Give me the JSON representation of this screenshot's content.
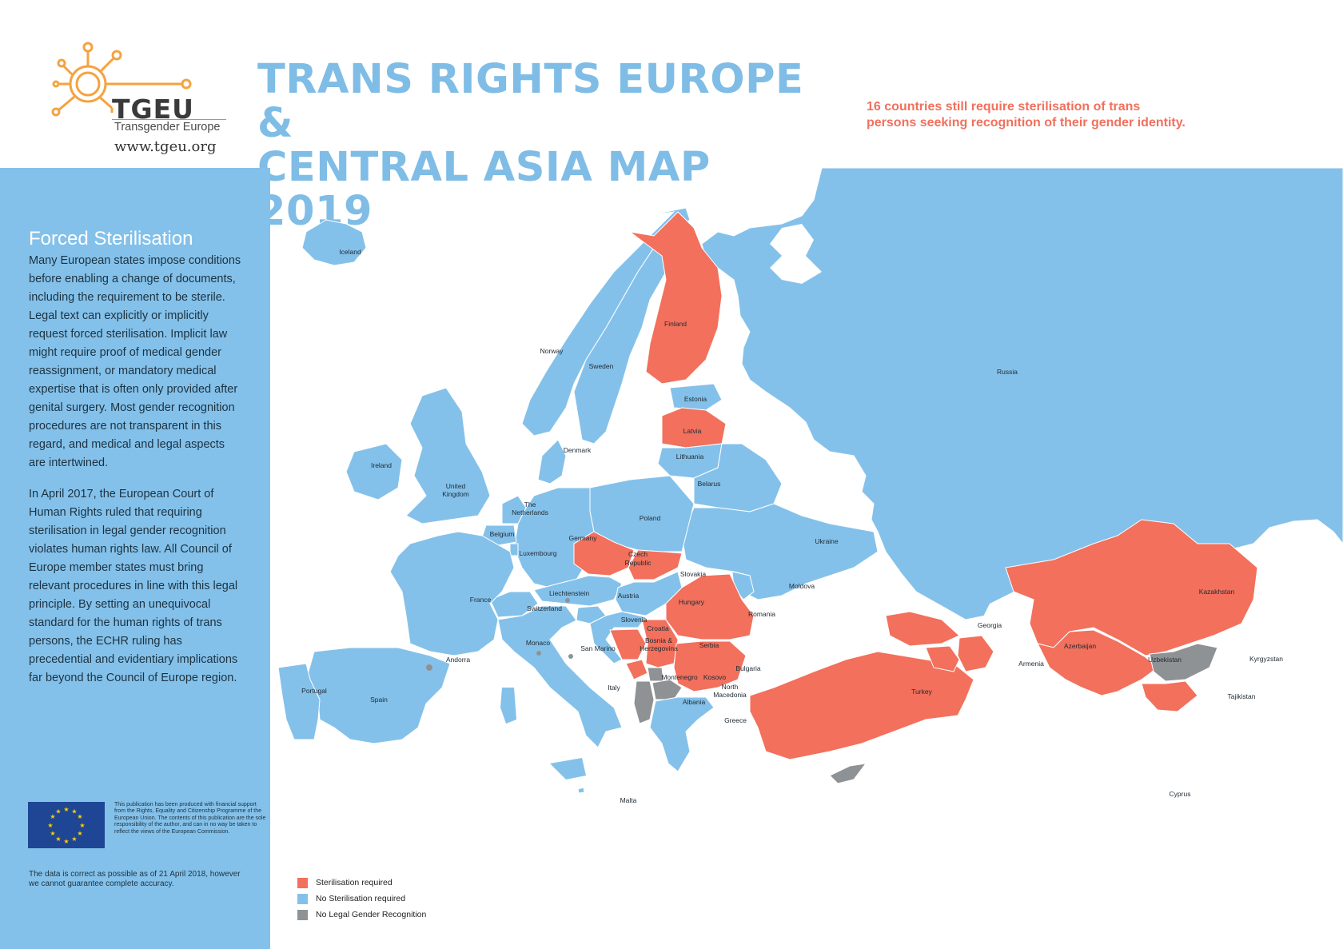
{
  "header": {
    "logo_word": "TGEU",
    "logo_subtitle": "Transgender Europe",
    "logo_url": "www.tgeu.org",
    "title_line1": "TRANS RIGHTS EUROPE &",
    "title_line2": "CENTRAL ASIA MAP 2019",
    "note_line1": "16 countries still require sterilisation of trans",
    "note_line2": "persons seeking recognition of their gender identity."
  },
  "sidebar": {
    "heading": "Forced Sterilisation",
    "paragraph1": "Many European states impose conditions before enabling a change of documents, including the requirement to be sterile. Legal text can explicitly or implicitly request forced sterilisation. Implicit law might require proof of medical gender reassignment, or mandatory medical expertise that is often only provided after genital surgery. Most gender recognition procedures are not transparent in this regard, and medical and legal aspects are intertwined.",
    "paragraph2": "In April 2017, the European Court of Human Rights ruled that requiring sterilisation in legal gender recognition violates human rights law. All Council of Europe member states must bring relevant procedures in line with this legal principle. By setting an unequivocal standard for the human rights of trans persons, the ECHR ruling has precedential and evidentiary implications far beyond the Council of Europe region.",
    "eu_text": "This publication has been produced with financial support from the Rights, Equality and Citizenship Programme of the European Union. The contents of this publication are the sole responsibility of the author, and can in no way be taken to reflect the views of the European Commission.",
    "disclaimer": "The data is correct as possible as of 21 April 2018, however we cannot guarantee complete accuracy."
  },
  "colors": {
    "sterilisation": "#f2705c",
    "no_sterilisation": "#84c1ea",
    "no_recognition": "#8f9294",
    "title": "#7fbde6",
    "border": "#ffffff"
  },
  "legend": [
    {
      "label": "Sterilisation required",
      "status": "sterilisation"
    },
    {
      "label": "No Sterilisation required",
      "status": "no_sterilisation"
    },
    {
      "label": "No Legal Gender Recognition",
      "status": "no_recognition"
    }
  ],
  "countries": {
    "iceland": {
      "name": "Iceland",
      "status": "no_sterilisation"
    },
    "ireland": {
      "name": "Ireland",
      "status": "no_sterilisation"
    },
    "united_kingdom": {
      "name_line1": "United",
      "name_line2": "Kingdom",
      "status": "no_sterilisation"
    },
    "norway": {
      "name": "Norway",
      "status": "no_sterilisation"
    },
    "sweden": {
      "name": "Sweden",
      "status": "no_sterilisation"
    },
    "finland": {
      "name": "Finland",
      "status": "sterilisation"
    },
    "russia": {
      "name": "Russia",
      "status": "no_sterilisation"
    },
    "estonia": {
      "name": "Estonia",
      "status": "no_sterilisation"
    },
    "latvia": {
      "name": "Latvia",
      "status": "sterilisation"
    },
    "lithuania": {
      "name": "Lithuania",
      "status": "no_sterilisation"
    },
    "denmark": {
      "name": "Denmark",
      "status": "no_sterilisation"
    },
    "belarus": {
      "name": "Belarus",
      "status": "no_sterilisation"
    },
    "netherlands": {
      "name_line1": "The",
      "name_line2": "Netherlands",
      "status": "no_sterilisation"
    },
    "belgium": {
      "name": "Belgium",
      "status": "no_sterilisation"
    },
    "luxembourg": {
      "name": "Luxembourg",
      "status": "no_sterilisation"
    },
    "germany": {
      "name": "Germany",
      "status": "no_sterilisation"
    },
    "poland": {
      "name": "Poland",
      "status": "no_sterilisation"
    },
    "ukraine": {
      "name": "Ukraine",
      "status": "no_sterilisation"
    },
    "czech_republic": {
      "name_line1": "Czech",
      "name_line2": "Republic",
      "status": "sterilisation"
    },
    "slovakia": {
      "name": "Slovakia",
      "status": "sterilisation"
    },
    "france": {
      "name": "France",
      "status": "no_sterilisation"
    },
    "liechtenstein": {
      "name": "Liechtenstein",
      "status": "no_sterilisation"
    },
    "switzerland": {
      "name": "Switzerland",
      "status": "no_sterilisation"
    },
    "austria": {
      "name": "Austria",
      "status": "no_sterilisation"
    },
    "hungary": {
      "name": "Hungary",
      "status": "no_sterilisation"
    },
    "moldova": {
      "name": "Moldova",
      "status": "no_sterilisation"
    },
    "romania": {
      "name": "Romania",
      "status": "sterilisation"
    },
    "slovenia": {
      "name": "Slovenia",
      "status": "no_sterilisation"
    },
    "croatia": {
      "name": "Croatia",
      "status": "no_sterilisation"
    },
    "bosnia": {
      "name_line1": "Bosnia &",
      "name_line2": "Herzegovina",
      "status": "sterilisation"
    },
    "serbia": {
      "name": "Serbia",
      "status": "sterilisation"
    },
    "montenegro": {
      "name": "Montenegro",
      "status": "sterilisation"
    },
    "kosovo": {
      "name": "Kosovo",
      "status": "no_recognition"
    },
    "north_macedonia": {
      "name_line1": "North",
      "name_line2": "Macedonia",
      "status": "no_recognition"
    },
    "albania": {
      "name": "Albania",
      "status": "no_recognition"
    },
    "bulgaria": {
      "name": "Bulgaria",
      "status": "sterilisation"
    },
    "greece": {
      "name": "Greece",
      "status": "no_sterilisation"
    },
    "monaco": {
      "name": "Monaco",
      "status": "no_sterilisation"
    },
    "san_marino": {
      "name": "San Marino",
      "status": "no_sterilisation"
    },
    "andorra": {
      "name": "Andorra",
      "status": "no_recognition"
    },
    "italy": {
      "name": "Italy",
      "status": "no_sterilisation"
    },
    "portugal": {
      "name": "Portugal",
      "status": "no_sterilisation"
    },
    "spain": {
      "name": "Spain",
      "status": "no_sterilisation"
    },
    "malta": {
      "name": "Malta",
      "status": "no_sterilisation"
    },
    "turkey": {
      "name": "Turkey",
      "status": "sterilisation"
    },
    "cyprus": {
      "name": "Cyprus",
      "status": "no_recognition"
    },
    "georgia": {
      "name": "Georgia",
      "status": "sterilisation"
    },
    "armenia": {
      "name": "Armenia",
      "status": "sterilisation"
    },
    "azerbaijan": {
      "name": "Azerbaijan",
      "status": "sterilisation"
    },
    "kazakhstan": {
      "name": "Kazakhstan",
      "status": "sterilisation"
    },
    "uzbekistan": {
      "name": "Uzbekistan",
      "status": "sterilisation"
    },
    "kyrgyzstan": {
      "name": "Kyrgyzstan",
      "status": "no_recognition"
    },
    "tajikistan": {
      "name": "Tajikistan",
      "status": "sterilisation"
    }
  }
}
